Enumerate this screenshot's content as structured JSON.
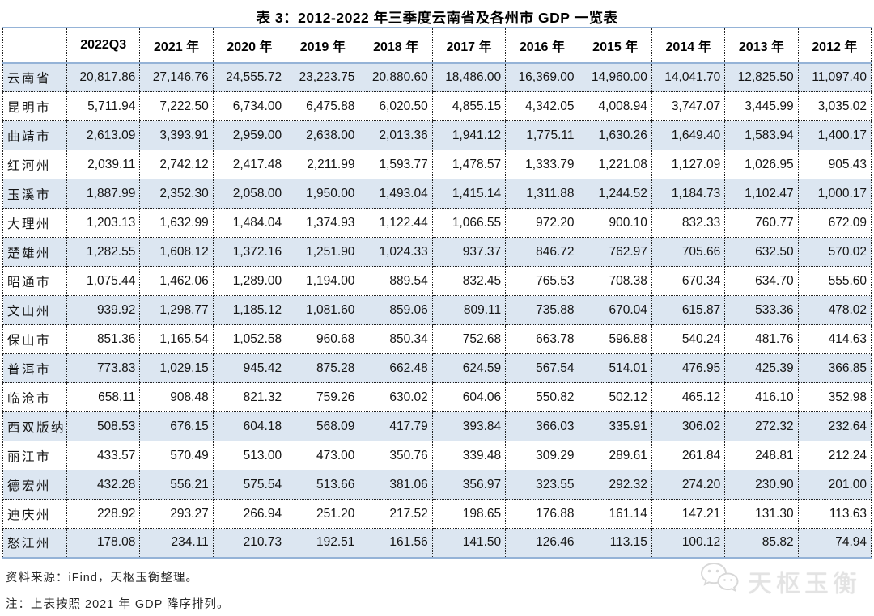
{
  "title": "表 3：2012-2022 年三季度云南省及各州市 GDP 一览表",
  "table": {
    "corner_label": "",
    "columns": [
      "2022Q3",
      "2021 年",
      "2020 年",
      "2019 年",
      "2018 年",
      "2017 年",
      "2016 年",
      "2015 年",
      "2014 年",
      "2013 年",
      "2012 年"
    ],
    "rows": [
      {
        "label": "云南省",
        "values": [
          "20,817.86",
          "27,146.76",
          "24,555.72",
          "23,223.75",
          "20,880.60",
          "18,486.00",
          "16,369.00",
          "14,960.00",
          "14,041.70",
          "12,825.50",
          "11,097.40"
        ]
      },
      {
        "label": "昆明市",
        "values": [
          "5,711.94",
          "7,222.50",
          "6,734.00",
          "6,475.88",
          "6,020.50",
          "4,855.15",
          "4,342.05",
          "4,008.94",
          "3,747.07",
          "3,445.99",
          "3,035.02"
        ]
      },
      {
        "label": "曲靖市",
        "values": [
          "2,613.09",
          "3,393.91",
          "2,959.00",
          "2,638.00",
          "2,013.36",
          "1,941.12",
          "1,775.11",
          "1,630.26",
          "1,649.40",
          "1,583.94",
          "1,400.17"
        ]
      },
      {
        "label": "红河州",
        "values": [
          "2,039.11",
          "2,742.12",
          "2,417.48",
          "2,211.99",
          "1,593.77",
          "1,478.57",
          "1,333.79",
          "1,221.08",
          "1,127.09",
          "1,026.95",
          "905.43"
        ]
      },
      {
        "label": "玉溪市",
        "values": [
          "1,887.99",
          "2,352.30",
          "2,058.00",
          "1,950.00",
          "1,493.04",
          "1,415.14",
          "1,311.88",
          "1,244.52",
          "1,184.73",
          "1,102.47",
          "1,000.17"
        ]
      },
      {
        "label": "大理州",
        "values": [
          "1,203.13",
          "1,632.99",
          "1,484.04",
          "1,374.93",
          "1,122.44",
          "1,066.55",
          "972.20",
          "900.10",
          "832.33",
          "760.77",
          "672.09"
        ]
      },
      {
        "label": "楚雄州",
        "values": [
          "1,282.55",
          "1,608.12",
          "1,372.16",
          "1,251.90",
          "1,024.33",
          "937.37",
          "846.72",
          "762.97",
          "705.66",
          "632.50",
          "570.02"
        ]
      },
      {
        "label": "昭通市",
        "values": [
          "1,075.44",
          "1,462.06",
          "1,289.00",
          "1,194.00",
          "889.54",
          "832.45",
          "765.53",
          "708.38",
          "670.34",
          "634.70",
          "555.60"
        ]
      },
      {
        "label": "文山州",
        "values": [
          "939.92",
          "1,298.77",
          "1,185.12",
          "1,081.60",
          "859.06",
          "809.11",
          "735.88",
          "670.04",
          "615.87",
          "533.36",
          "478.02"
        ]
      },
      {
        "label": "保山市",
        "values": [
          "851.36",
          "1,165.54",
          "1,052.58",
          "960.68",
          "850.34",
          "752.68",
          "663.78",
          "596.88",
          "540.24",
          "481.76",
          "414.63"
        ]
      },
      {
        "label": "普洱市",
        "values": [
          "773.83",
          "1,029.15",
          "945.42",
          "875.28",
          "662.48",
          "624.59",
          "567.54",
          "514.01",
          "476.95",
          "425.39",
          "366.85"
        ]
      },
      {
        "label": "临沧市",
        "values": [
          "658.11",
          "908.48",
          "821.32",
          "759.26",
          "630.02",
          "604.06",
          "550.82",
          "502.12",
          "465.12",
          "416.10",
          "352.98"
        ]
      },
      {
        "label": "西双版纳",
        "values": [
          "508.53",
          "676.15",
          "604.18",
          "568.09",
          "417.79",
          "393.84",
          "366.03",
          "335.91",
          "306.02",
          "272.32",
          "232.64"
        ]
      },
      {
        "label": "丽江市",
        "values": [
          "433.57",
          "570.49",
          "513.00",
          "473.00",
          "350.76",
          "339.48",
          "309.29",
          "289.61",
          "261.84",
          "248.81",
          "212.24"
        ]
      },
      {
        "label": "德宏州",
        "values": [
          "432.28",
          "556.21",
          "575.54",
          "513.66",
          "381.06",
          "356.97",
          "323.55",
          "292.32",
          "274.20",
          "230.90",
          "201.00"
        ]
      },
      {
        "label": "迪庆州",
        "values": [
          "228.92",
          "293.27",
          "266.94",
          "251.20",
          "217.52",
          "198.65",
          "176.88",
          "161.14",
          "147.21",
          "131.30",
          "113.63"
        ]
      },
      {
        "label": "怒江州",
        "values": [
          "178.08",
          "234.11",
          "210.73",
          "192.51",
          "161.56",
          "141.50",
          "126.46",
          "113.15",
          "100.12",
          "85.82",
          "74.94"
        ]
      }
    ]
  },
  "footer": {
    "source": "资料来源：iFind，天枢玉衡整理。",
    "note": "注：上表按照 2021 年 GDP 降序排列。"
  },
  "watermark": {
    "icon": "wechat-icon",
    "text": "天枢玉衡"
  },
  "colors": {
    "stripe_blue": "#dce6f1",
    "rule_blue": "#95b3d7",
    "dotted_border": "#222222",
    "watermark_gray": "#e3e3e3"
  }
}
